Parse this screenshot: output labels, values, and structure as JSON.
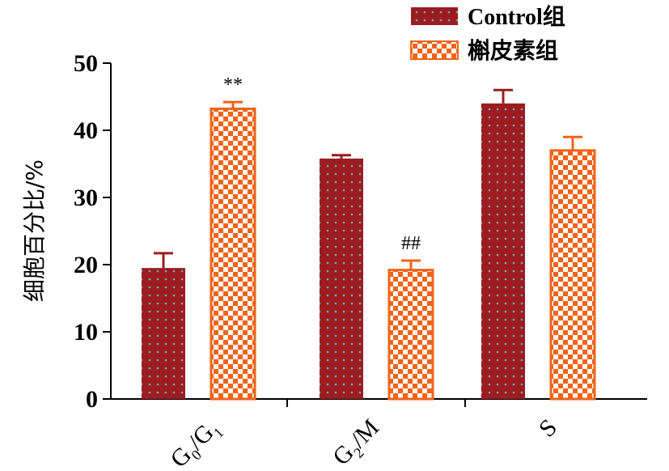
{
  "chart_data": {
    "type": "bar",
    "ylabel": "细胞百分比/%",
    "ylim": [
      0,
      50
    ],
    "yticks": [
      0,
      10,
      20,
      30,
      40,
      50
    ],
    "categories": [
      {
        "base": "G",
        "sub1": "0",
        "sep": "/G",
        "sub2": "1"
      },
      {
        "base": "G",
        "sub1": "2",
        "sep": "/M",
        "sub2": ""
      },
      {
        "base": "S",
        "sub1": "",
        "sep": "",
        "sub2": ""
      }
    ],
    "series": [
      {
        "name": "Control组",
        "values": [
          19.5,
          35.8,
          44.0
        ],
        "errors": [
          2.2,
          0.5,
          2.0
        ],
        "color": "#9b1c21",
        "pattern": "dots"
      },
      {
        "name": "槲皮素组",
        "values": [
          43.2,
          19.2,
          37.0
        ],
        "errors": [
          1.0,
          1.4,
          2.0
        ],
        "color": "#f06418",
        "pattern": "checker"
      }
    ],
    "annotations": [
      {
        "category": 0,
        "series": 1,
        "text": "**"
      },
      {
        "category": 1,
        "series": 1,
        "text": "##"
      }
    ],
    "legend_position": "top-right"
  }
}
